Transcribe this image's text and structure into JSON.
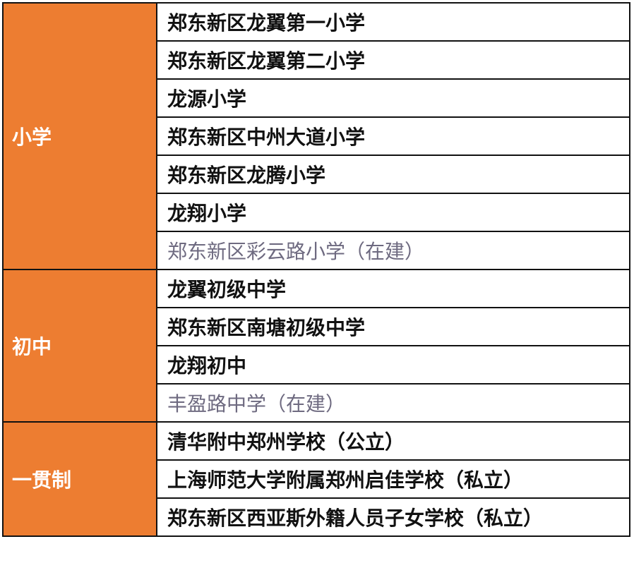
{
  "colors": {
    "category_bg": "#ED7D31",
    "planned_text": "#6e6a80"
  },
  "groups": [
    {
      "category": "小学",
      "schools": [
        {
          "name": "郑东新区龙翼第一小学",
          "under_construction": false
        },
        {
          "name": "郑东新区龙翼第二小学",
          "under_construction": false
        },
        {
          "name": "龙源小学",
          "under_construction": false
        },
        {
          "name": "郑东新区中州大道小学",
          "under_construction": false
        },
        {
          "name": "郑东新区龙腾小学",
          "under_construction": false
        },
        {
          "name": "龙翔小学",
          "under_construction": false
        },
        {
          "name": "郑东新区彩云路小学（在建）",
          "under_construction": true
        }
      ]
    },
    {
      "category": "初中",
      "schools": [
        {
          "name": "龙翼初级中学",
          "under_construction": false
        },
        {
          "name": "郑东新区南塘初级中学",
          "under_construction": false
        },
        {
          "name": "龙翔初中",
          "under_construction": false
        },
        {
          "name": "丰盈路中学（在建）",
          "under_construction": true
        }
      ]
    },
    {
      "category": "一贯制",
      "schools": [
        {
          "name": "清华附中郑州学校（公立）",
          "under_construction": false
        },
        {
          "name": "上海师范大学附属郑州启佳学校（私立）",
          "under_construction": false
        },
        {
          "name": "郑东新区西亚斯外籍人员子女学校（私立）",
          "under_construction": false
        }
      ]
    }
  ]
}
